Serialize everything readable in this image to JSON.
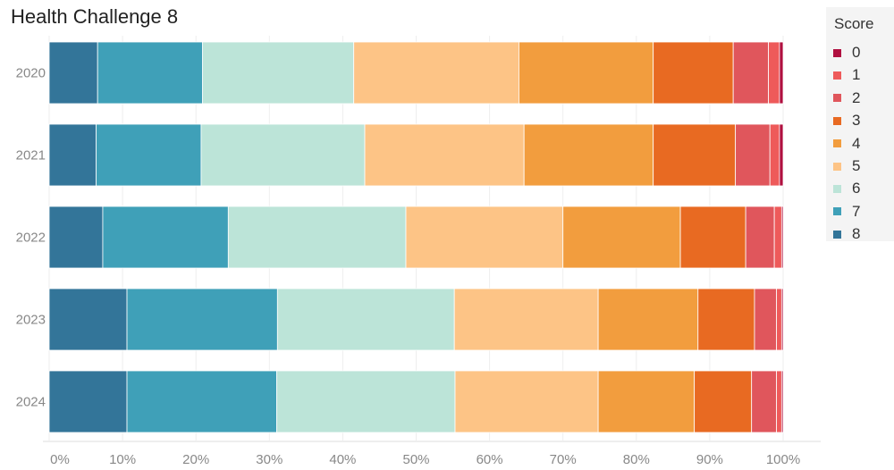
{
  "title": "Health Challenge 8",
  "legend": {
    "title": "Score",
    "items": [
      {
        "label": "0",
        "color": "#b01040"
      },
      {
        "label": "1",
        "color": "#ee5a5a"
      },
      {
        "label": "2",
        "color": "#e0565c"
      },
      {
        "label": "3",
        "color": "#e86a22"
      },
      {
        "label": "4",
        "color": "#f29d3e"
      },
      {
        "label": "5",
        "color": "#fdc486"
      },
      {
        "label": "6",
        "color": "#bce4d8"
      },
      {
        "label": "7",
        "color": "#3fa0b8"
      },
      {
        "label": "8",
        "color": "#337599"
      }
    ]
  },
  "chart_data": {
    "type": "bar",
    "orientation": "horizontal",
    "stacked": "100%",
    "title": "Health Challenge 8",
    "categories": [
      "2020",
      "2021",
      "2022",
      "2023",
      "2024"
    ],
    "xlim": [
      0,
      100
    ],
    "x_ticks": [
      "0%",
      "10%",
      "20%",
      "30%",
      "40%",
      "50%",
      "60%",
      "70%",
      "80%",
      "90%",
      "100%"
    ],
    "grid": "vertical",
    "legend_position": "right",
    "series": [
      {
        "name": "8",
        "color": "#337599",
        "values": [
          6.6,
          6.4,
          7.3,
          10.6,
          10.6
        ]
      },
      {
        "name": "7",
        "color": "#3fa0b8",
        "values": [
          14.3,
          14.3,
          17.1,
          20.5,
          20.4
        ]
      },
      {
        "name": "6",
        "color": "#bce4d8",
        "values": [
          20.6,
          22.3,
          24.2,
          24.1,
          24.3
        ]
      },
      {
        "name": "5",
        "color": "#fdc486",
        "values": [
          22.5,
          21.7,
          21.4,
          19.6,
          19.5
        ]
      },
      {
        "name": "4",
        "color": "#f29d3e",
        "values": [
          18.3,
          17.6,
          16.0,
          13.6,
          13.1
        ]
      },
      {
        "name": "3",
        "color": "#e86a22",
        "values": [
          10.9,
          11.2,
          8.9,
          7.7,
          7.8
        ]
      },
      {
        "name": "2",
        "color": "#e0565c",
        "values": [
          4.8,
          4.7,
          3.9,
          3.0,
          3.4
        ]
      },
      {
        "name": "1",
        "color": "#ee5a5a",
        "values": [
          1.5,
          1.3,
          1.0,
          0.7,
          0.7
        ]
      },
      {
        "name": "0",
        "color": "#b01040",
        "values": [
          0.5,
          0.5,
          0.2,
          0.2,
          0.2
        ]
      }
    ]
  }
}
